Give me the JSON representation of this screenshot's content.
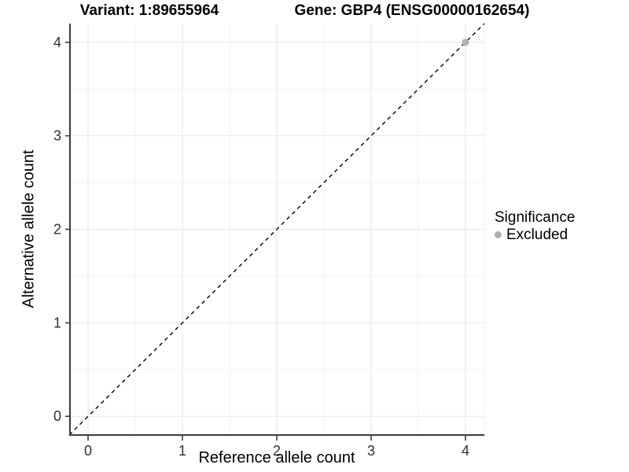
{
  "titles": {
    "left": "Variant: 1:89655964",
    "right": "Gene: GBP4 (ENSG00000162654)"
  },
  "axes": {
    "x_label": "Reference allele count",
    "y_label": "Alternative allele count"
  },
  "legend": {
    "title": "Significance",
    "items": [
      {
        "label": "Excluded",
        "color": "#b0b0b0"
      }
    ]
  },
  "chart_data": {
    "type": "scatter",
    "title": "Variant: 1:89655964   Gene: GBP4 (ENSG00000162654)",
    "xlabel": "Reference allele count",
    "ylabel": "Alternative allele count",
    "xlim": [
      -0.2,
      4.2
    ],
    "ylim": [
      -0.2,
      4.2
    ],
    "x_ticks": [
      0,
      1,
      2,
      3,
      4
    ],
    "y_ticks": [
      0,
      1,
      2,
      3,
      4
    ],
    "grid": "major and minor gridlines on white panel",
    "legend_position": "right",
    "reference_line": {
      "kind": "identity y=x",
      "linetype": "dashed",
      "color": "#000000"
    },
    "series": [
      {
        "name": "Excluded",
        "color": "#b0b0b0",
        "points": [
          [
            4,
            4
          ]
        ]
      }
    ]
  },
  "style": {
    "background": "#ffffff",
    "axis_color": "#3c3c3c",
    "tick_label_color": "#303030",
    "grid_major": "#e6e6e6",
    "grid_minor": "#f2f2f2",
    "panel_edge": "#ededed",
    "point_color": "#b0b0b0",
    "dash_color": "#000000"
  }
}
